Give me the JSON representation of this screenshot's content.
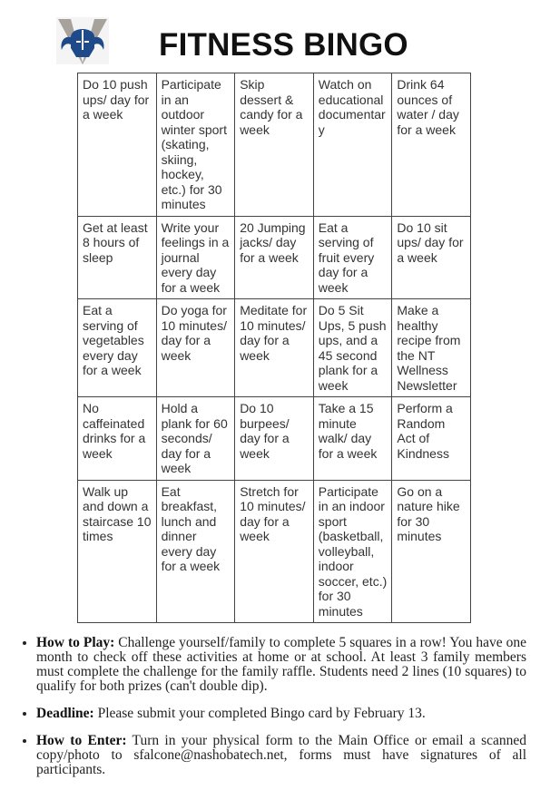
{
  "title": "FITNESS BINGO",
  "logo": {
    "icon": "viking-helmet-logo",
    "colors": {
      "helmet": "#1f4a8a",
      "v": "#a8a29c"
    }
  },
  "grid": [
    [
      "Do 10 push ups/ day for a week",
      "Participate in an outdoor winter sport (skating, skiing, hockey, etc.) for 30 minutes",
      "Skip dessert & candy for a week",
      "Watch on educational documentary",
      "Drink 64 ounces of water / day for a week"
    ],
    [
      "Get at least 8 hours of sleep",
      "Write your feelings in a journal every day for a week",
      "20 Jumping jacks/ day for a week",
      "Eat a serving of fruit every day for a week",
      "Do 10 sit ups/ day for a week"
    ],
    [
      "Eat a serving of vegetables every day for a week",
      "Do yoga for 10 minutes/ day for a week",
      "Meditate for 10 minutes/ day for a week",
      "Do 5 Sit Ups, 5 push ups, and a 45 second plank for a week",
      "Make a healthy recipe from the NT Wellness Newsletter"
    ],
    [
      "No caffeinated drinks for a week",
      "Hold a plank for 60 seconds/ day for a week",
      "Do 10 burpees/ day for a week",
      "Take a 15 minute walk/ day for a week",
      "Perform a Random Act of Kindness"
    ],
    [
      "Walk up and down a staircase 10 times",
      "Eat breakfast, lunch and dinner every day for a week",
      "Stretch for 10 minutes/ day for a week",
      "Participate in an indoor sport (basketball, volleyball, indoor soccer, etc.) for 30 minutes",
      "Go on a nature hike for 30 minutes"
    ]
  ],
  "rules": [
    {
      "label": "How to Play:",
      "text": " Challenge yourself/family to complete 5 squares in a row! You have one month to check off these activities at home or at school. At least 3 family members must complete the challenge for the family raffle. Students need 2 lines (10 squares) to qualify for both prizes (can't double dip)."
    },
    {
      "label": "Deadline:",
      "text": " Please submit your completed Bingo card by February 13."
    },
    {
      "label": "How to Enter:",
      "text": " Turn in your physical form to the Main Office or email a scanned copy/photo to sfalcone@nashobatech.net, forms must have signatures of all participants."
    }
  ]
}
